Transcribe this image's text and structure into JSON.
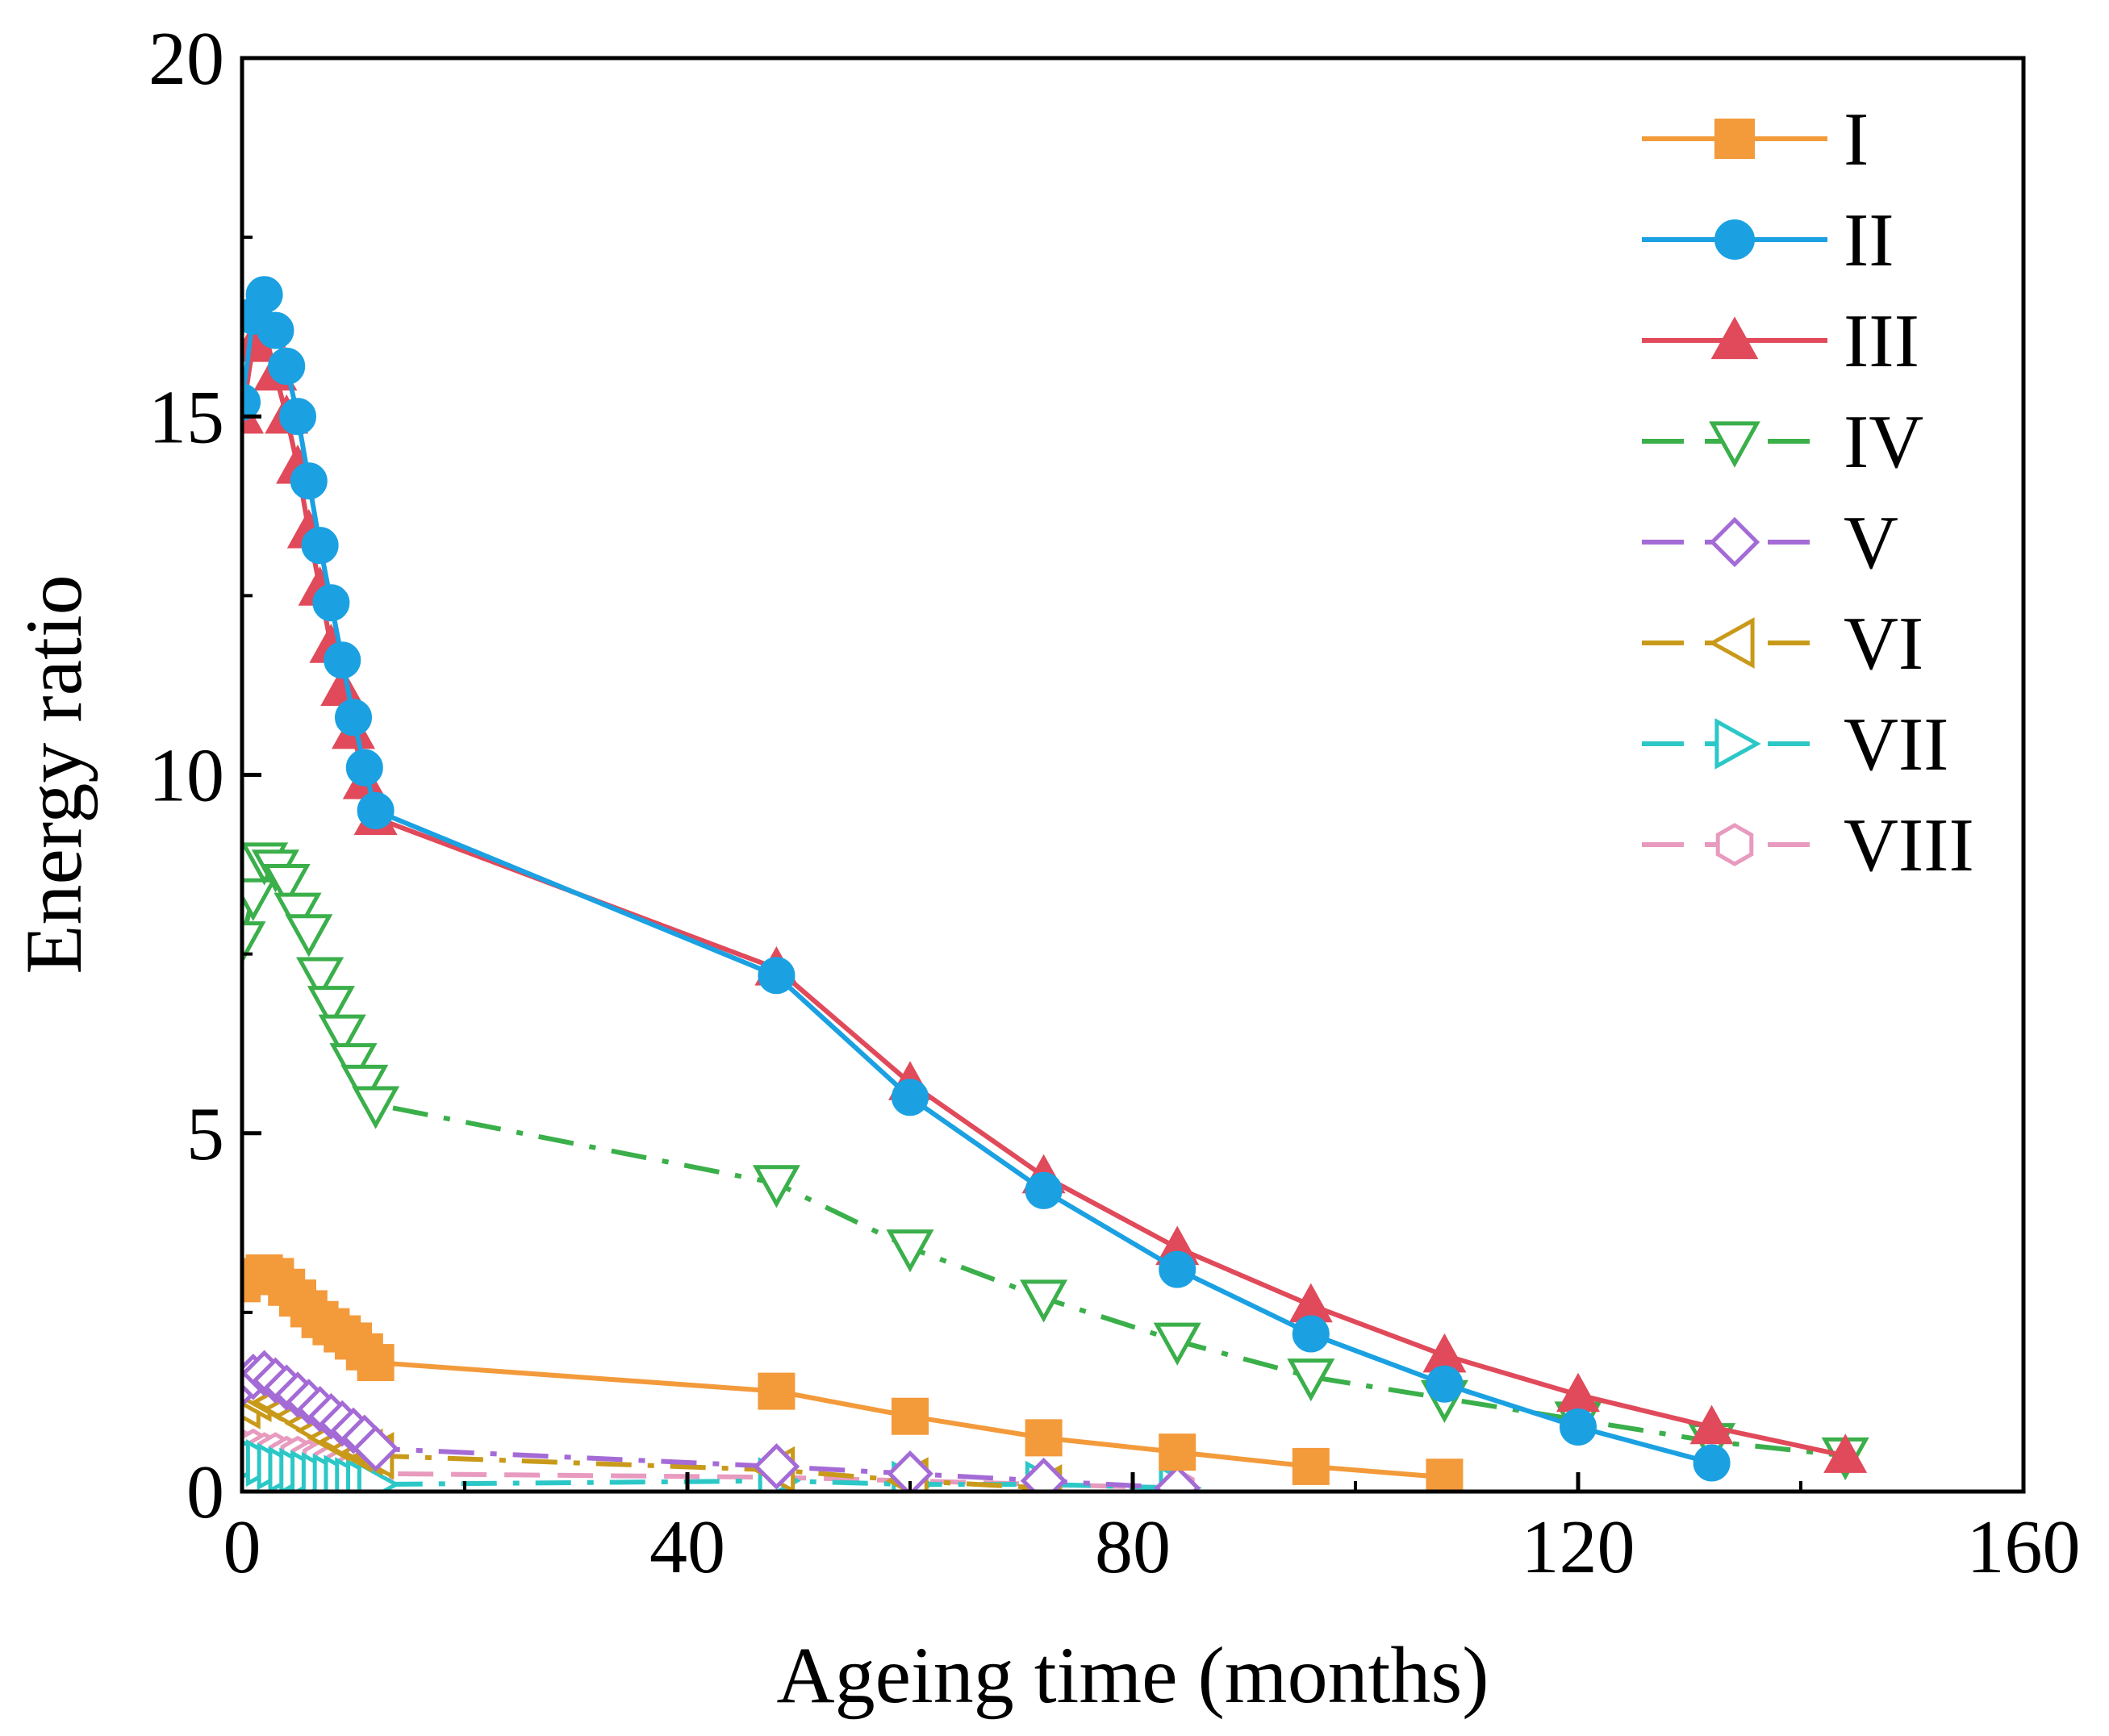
{
  "chart_data": {
    "type": "line",
    "xlabel": "Ageing time (months)",
    "ylabel": "Energy ratio",
    "xlim": [
      0,
      160
    ],
    "ylim": [
      0,
      20
    ],
    "xticks": [
      "0",
      "40",
      "80",
      "120",
      "160"
    ],
    "xtick_values": [
      0,
      40,
      80,
      120,
      160
    ],
    "yticks": [
      "0",
      "5",
      "10",
      "15",
      "20"
    ],
    "ytick_values": [
      0,
      5,
      10,
      15,
      20
    ],
    "grid": false,
    "legend_position": "top-right",
    "series": [
      {
        "name": "I",
        "color": "#F39A3B",
        "marker": "square",
        "filled": true,
        "dash": "solid",
        "x": [
          0,
          1,
          2,
          3,
          4,
          5,
          6,
          7,
          8,
          9,
          10,
          11,
          12,
          48,
          60,
          72,
          84,
          96,
          108
        ],
        "y": [
          2.9,
          3.0,
          3.05,
          3.0,
          2.85,
          2.7,
          2.55,
          2.4,
          2.3,
          2.2,
          2.1,
          1.95,
          1.8,
          1.4,
          1.05,
          0.75,
          0.55,
          0.35,
          0.2
        ]
      },
      {
        "name": "II",
        "color": "#1BA1E2",
        "marker": "circle",
        "filled": true,
        "dash": "solid",
        "x": [
          0,
          1,
          2,
          3,
          4,
          5,
          6,
          7,
          8,
          9,
          10,
          11,
          12,
          48,
          60,
          72,
          84,
          96,
          108,
          120,
          132
        ],
        "y": [
          15.2,
          16.4,
          16.7,
          16.2,
          15.7,
          15.0,
          14.1,
          13.2,
          12.4,
          11.6,
          10.8,
          10.1,
          9.5,
          7.2,
          5.5,
          4.2,
          3.1,
          2.2,
          1.5,
          0.9,
          0.4
        ]
      },
      {
        "name": "III",
        "color": "#E04A5A",
        "marker": "triangle-up",
        "filled": true,
        "dash": "solid",
        "x": [
          0,
          1,
          2,
          3,
          4,
          5,
          6,
          7,
          8,
          9,
          10,
          11,
          12,
          48,
          60,
          72,
          84,
          96,
          108,
          120,
          132,
          144
        ],
        "y": [
          15.0,
          16.0,
          16.2,
          15.6,
          15.0,
          14.3,
          13.4,
          12.6,
          11.8,
          11.2,
          10.6,
          9.9,
          9.4,
          7.3,
          5.7,
          4.4,
          3.4,
          2.6,
          1.9,
          1.35,
          0.9,
          0.5
        ]
      },
      {
        "name": "IV",
        "color": "#3AAF4A",
        "marker": "triangle-down",
        "filled": false,
        "dash": "dashdot",
        "x": [
          0,
          1,
          2,
          3,
          4,
          5,
          6,
          7,
          8,
          9,
          10,
          11,
          12,
          48,
          60,
          72,
          84,
          96,
          108,
          120,
          132,
          144
        ],
        "y": [
          7.7,
          8.3,
          8.8,
          8.7,
          8.5,
          8.1,
          7.8,
          7.2,
          6.8,
          6.4,
          6.0,
          5.7,
          5.4,
          4.3,
          3.4,
          2.7,
          2.1,
          1.6,
          1.3,
          1.0,
          0.7,
          0.5
        ]
      },
      {
        "name": "V",
        "color": "#A46BD6",
        "marker": "diamond",
        "filled": false,
        "dash": "dashdot",
        "x": [
          0,
          1,
          2,
          3,
          4,
          5,
          6,
          7,
          8,
          9,
          10,
          11,
          12,
          48,
          60,
          72,
          84
        ],
        "y": [
          1.5,
          1.6,
          1.65,
          1.55,
          1.45,
          1.35,
          1.25,
          1.15,
          1.05,
          0.95,
          0.85,
          0.75,
          0.6,
          0.35,
          0.25,
          0.15,
          0.05
        ]
      },
      {
        "name": "VI",
        "color": "#C99A1A",
        "marker": "triangle-left",
        "filled": false,
        "dash": "dashdot",
        "x": [
          0,
          1,
          2,
          3,
          4,
          5,
          6,
          7,
          8,
          9,
          10,
          11,
          12,
          48,
          60,
          72
        ],
        "y": [
          1.2,
          1.3,
          1.3,
          1.25,
          1.15,
          1.05,
          0.95,
          0.85,
          0.75,
          0.7,
          0.6,
          0.55,
          0.5,
          0.3,
          0.15,
          0.05
        ]
      },
      {
        "name": "VII",
        "color": "#2CC7C7",
        "marker": "triangle-right",
        "filled": false,
        "dash": "dashdot",
        "x": [
          0,
          1,
          2,
          3,
          4,
          5,
          6,
          7,
          8,
          9,
          10,
          11,
          12,
          48,
          60,
          72,
          84
        ],
        "y": [
          0.5,
          0.45,
          0.4,
          0.35,
          0.3,
          0.28,
          0.25,
          0.22,
          0.2,
          0.18,
          0.15,
          0.13,
          0.1,
          0.15,
          0.1,
          0.1,
          0.05
        ]
      },
      {
        "name": "VIII",
        "color": "#E89ABF",
        "marker": "hexagon",
        "filled": false,
        "dash": "dashed",
        "x": [
          0,
          1,
          2,
          3,
          4,
          5,
          6,
          7,
          8,
          9,
          10,
          11,
          12,
          48,
          60,
          72,
          84
        ],
        "y": [
          0.6,
          0.6,
          0.55,
          0.55,
          0.5,
          0.5,
          0.45,
          0.45,
          0.4,
          0.35,
          0.3,
          0.25,
          0.25,
          0.2,
          0.15,
          0.1,
          0.05
        ]
      }
    ]
  }
}
